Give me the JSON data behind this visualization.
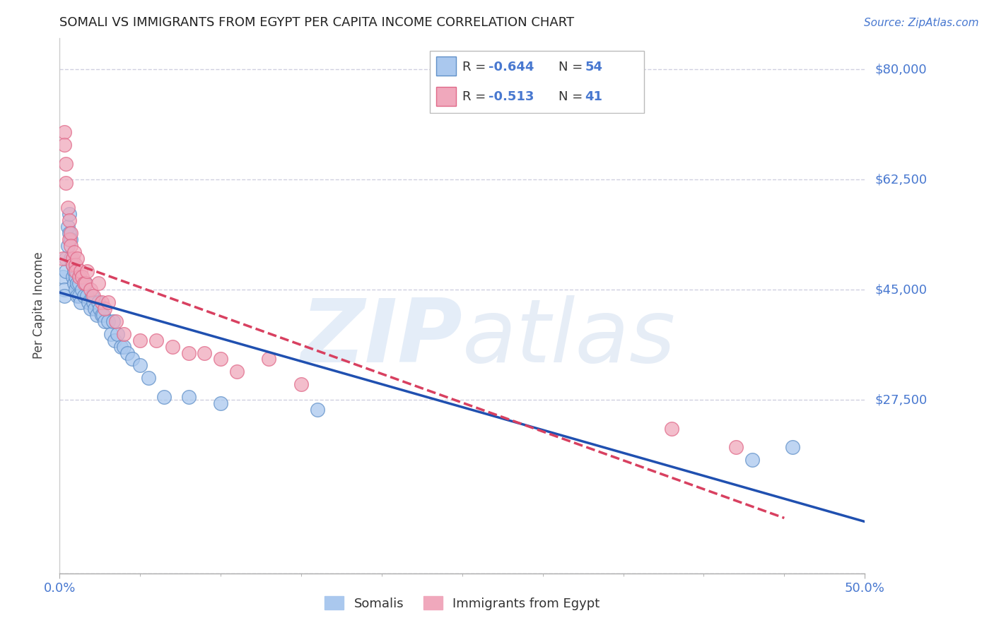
{
  "title": "SOMALI VS IMMIGRANTS FROM EGYPT PER CAPITA INCOME CORRELATION CHART",
  "source": "Source: ZipAtlas.com",
  "ylabel": "Per Capita Income",
  "xlim": [
    0.0,
    0.5
  ],
  "ylim": [
    0,
    85000
  ],
  "yticks": [
    0,
    27500,
    45000,
    62500,
    80000
  ],
  "ytick_labels": [
    "",
    "$27,500",
    "$45,000",
    "$62,500",
    "$80,000"
  ],
  "xticks": [
    0.0,
    0.5
  ],
  "xtick_labels": [
    "0.0%",
    "50.0%"
  ],
  "blue_color": "#aac8ee",
  "pink_color": "#f0a8bc",
  "blue_edge": "#6090c8",
  "pink_edge": "#e06888",
  "reg_blue": "#2050b0",
  "reg_pink": "#d84060",
  "reg_pink_style": "--",
  "somali_label": "Somalis",
  "egypt_label": "Immigrants from Egypt",
  "legend_r_blue": "R = -0.644",
  "legend_n_blue": "N = 54",
  "legend_r_pink": "R =  -0.513",
  "legend_n_pink": "N =  41",
  "watermark": "ZIPatlas",
  "axis_color": "#4878d0",
  "grid_color": "#d0d0e0",
  "title_color": "#222222",
  "somali_x": [
    0.002,
    0.003,
    0.003,
    0.004,
    0.004,
    0.005,
    0.005,
    0.006,
    0.006,
    0.007,
    0.007,
    0.008,
    0.008,
    0.009,
    0.009,
    0.01,
    0.01,
    0.011,
    0.011,
    0.012,
    0.012,
    0.013,
    0.014,
    0.015,
    0.016,
    0.017,
    0.018,
    0.019,
    0.02,
    0.021,
    0.022,
    0.023,
    0.024,
    0.025,
    0.026,
    0.027,
    0.028,
    0.03,
    0.032,
    0.033,
    0.034,
    0.036,
    0.038,
    0.04,
    0.042,
    0.045,
    0.05,
    0.055,
    0.065,
    0.08,
    0.1,
    0.16,
    0.43,
    0.455
  ],
  "somali_y": [
    47000,
    45000,
    44000,
    50000,
    48000,
    55000,
    52000,
    57000,
    54000,
    53000,
    50000,
    49000,
    47000,
    48000,
    46000,
    47000,
    45000,
    46000,
    44000,
    46000,
    44000,
    43000,
    45000,
    44000,
    46000,
    44000,
    43000,
    42000,
    44000,
    43000,
    42000,
    41000,
    43000,
    42000,
    41000,
    41000,
    40000,
    40000,
    38000,
    40000,
    37000,
    38000,
    36000,
    36000,
    35000,
    34000,
    33000,
    31000,
    28000,
    28000,
    27000,
    26000,
    18000,
    20000
  ],
  "egypt_x": [
    0.002,
    0.003,
    0.003,
    0.004,
    0.004,
    0.005,
    0.006,
    0.006,
    0.007,
    0.007,
    0.008,
    0.008,
    0.009,
    0.01,
    0.01,
    0.011,
    0.012,
    0.013,
    0.014,
    0.015,
    0.016,
    0.017,
    0.019,
    0.021,
    0.024,
    0.026,
    0.028,
    0.03,
    0.035,
    0.04,
    0.05,
    0.06,
    0.07,
    0.08,
    0.09,
    0.1,
    0.11,
    0.13,
    0.15,
    0.38,
    0.42
  ],
  "egypt_y": [
    50000,
    70000,
    68000,
    65000,
    62000,
    58000,
    56000,
    53000,
    54000,
    52000,
    50000,
    49000,
    51000,
    49000,
    48000,
    50000,
    47000,
    48000,
    47000,
    46000,
    46000,
    48000,
    45000,
    44000,
    46000,
    43000,
    42000,
    43000,
    40000,
    38000,
    37000,
    37000,
    36000,
    35000,
    35000,
    34000,
    32000,
    34000,
    30000,
    23000,
    20000
  ]
}
